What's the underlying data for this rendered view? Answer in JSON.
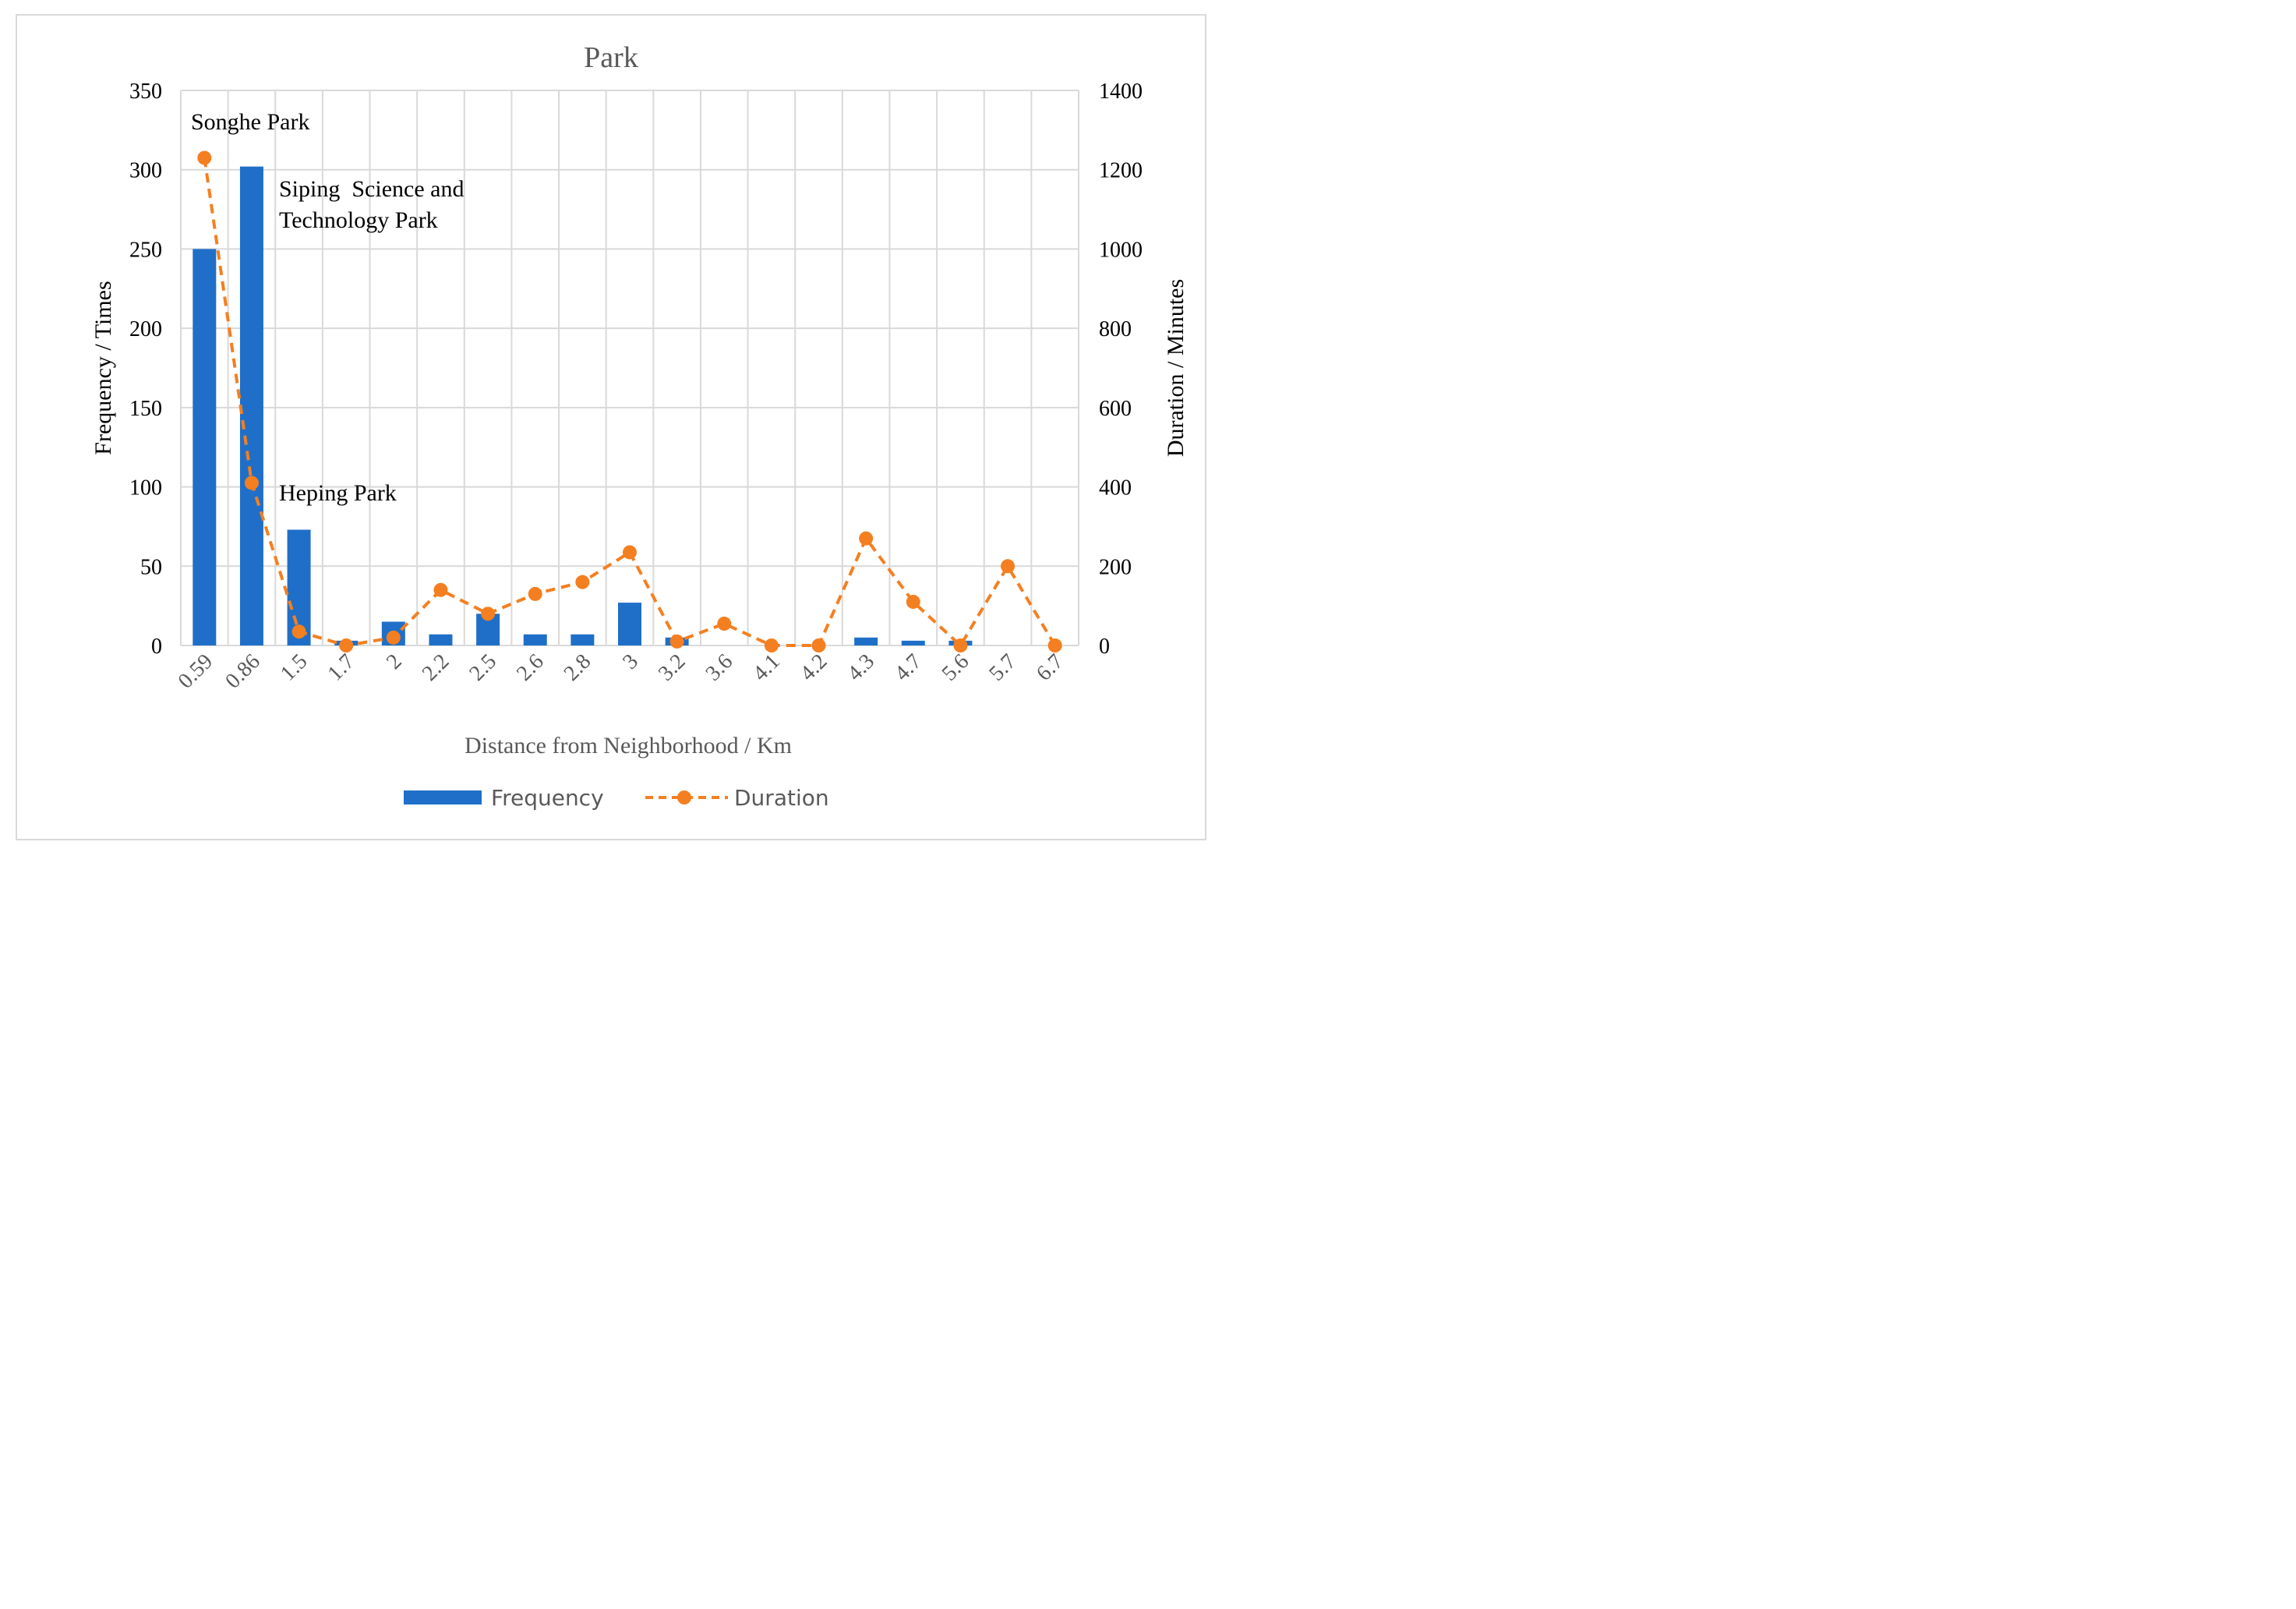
{
  "chart_data": {
    "type": "bar",
    "title": "Park",
    "xlabel": "Distance from Neighborhood / Km",
    "ylabel_left": "Frequency / Times",
    "ylabel_right": "Duration / Minutes",
    "categories": [
      "0.59",
      "0.86",
      "1.5",
      "1.7",
      "2",
      "2.2",
      "2.5",
      "2.6",
      "2.8",
      "3",
      "3.2",
      "3.6",
      "4.1",
      "4.2",
      "4.3",
      "4.7",
      "5.6",
      "5.7",
      "6.7"
    ],
    "ylim_left": [
      0,
      350
    ],
    "yticks_left": [
      "0",
      "50",
      "100",
      "150",
      "200",
      "250",
      "300",
      "350"
    ],
    "ylim_right": [
      0,
      1400
    ],
    "yticks_right": [
      "0",
      "200",
      "400",
      "600",
      "800",
      "1000",
      "1200",
      "1400"
    ],
    "grid": true,
    "legend_position": "bottom",
    "series": [
      {
        "name": "Frequency",
        "type": "bar",
        "axis": "left",
        "color": "#1f6fc8",
        "values": [
          250,
          302,
          73,
          3,
          15,
          7,
          20,
          7,
          7,
          27,
          5,
          0,
          0,
          0,
          5,
          3,
          3,
          0,
          0
        ]
      },
      {
        "name": "Duration",
        "type": "line",
        "style": "dashed",
        "marker": "circle",
        "axis": "right",
        "color": "#f47f20",
        "values": [
          1230,
          410,
          35,
          0,
          20,
          140,
          80,
          130,
          160,
          235,
          10,
          55,
          0,
          0,
          270,
          110,
          0,
          200,
          0
        ]
      }
    ],
    "annotations": [
      {
        "text": "Songhe Park",
        "category": "0.59"
      },
      {
        "text": "Siping  Science and",
        "category": "0.86"
      },
      {
        "text": "Technology Park",
        "category": "0.86"
      },
      {
        "text": "Heping Park",
        "category": "0.86"
      }
    ]
  }
}
